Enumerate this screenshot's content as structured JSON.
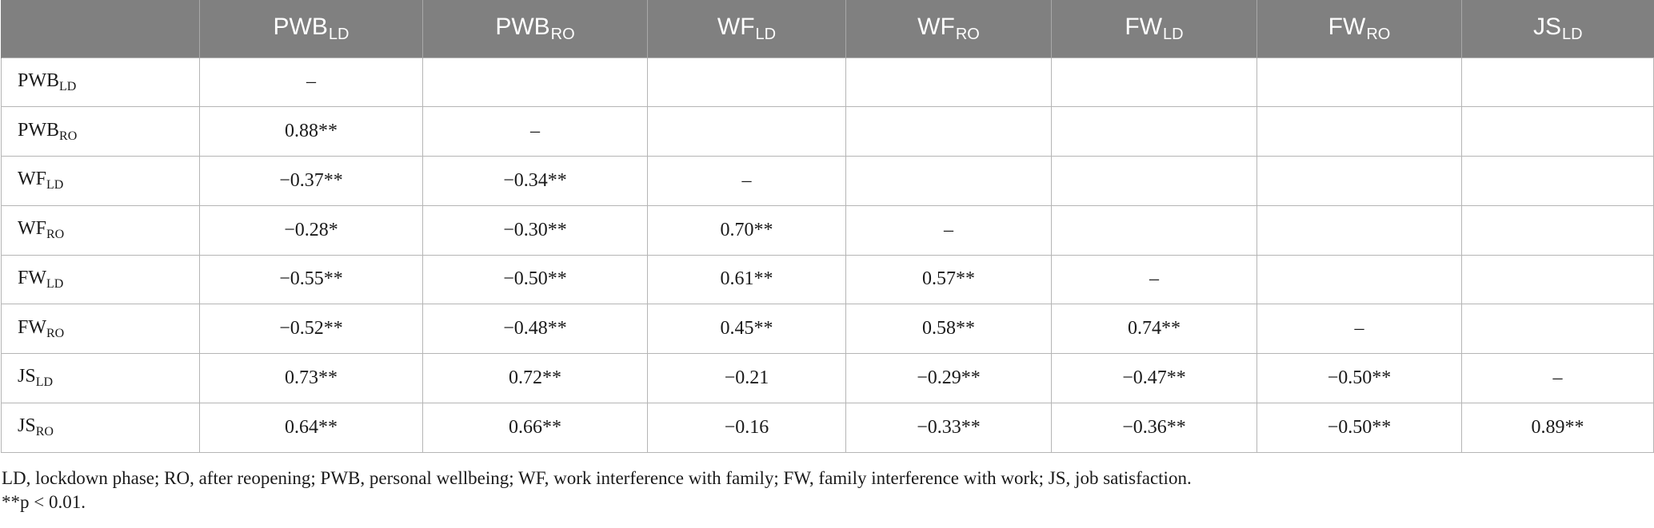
{
  "table": {
    "columns": [
      {
        "base": "",
        "sub": ""
      },
      {
        "base": "PWB",
        "sub": "LD"
      },
      {
        "base": "PWB",
        "sub": "RO"
      },
      {
        "base": "WF",
        "sub": "LD"
      },
      {
        "base": "WF",
        "sub": "RO"
      },
      {
        "base": "FW",
        "sub": "LD"
      },
      {
        "base": "FW",
        "sub": "RO"
      },
      {
        "base": "JS",
        "sub": "LD"
      }
    ],
    "rows": [
      {
        "base": "PWB",
        "sub": "LD",
        "cells": [
          "–",
          "",
          "",
          "",
          "",
          "",
          ""
        ]
      },
      {
        "base": "PWB",
        "sub": "RO",
        "cells": [
          "0.88**",
          "–",
          "",
          "",
          "",
          "",
          ""
        ]
      },
      {
        "base": "WF",
        "sub": "LD",
        "cells": [
          "−0.37**",
          "−0.34**",
          "–",
          "",
          "",
          "",
          ""
        ]
      },
      {
        "base": "WF",
        "sub": "RO",
        "cells": [
          "−0.28*",
          "−0.30**",
          "0.70**",
          "–",
          "",
          "",
          ""
        ]
      },
      {
        "base": "FW",
        "sub": "LD",
        "cells": [
          "−0.55**",
          "−0.50**",
          "0.61**",
          "0.57**",
          "–",
          "",
          ""
        ]
      },
      {
        "base": "FW",
        "sub": "RO",
        "cells": [
          "−0.52**",
          "−0.48**",
          "0.45**",
          "0.58**",
          "0.74**",
          "–",
          ""
        ]
      },
      {
        "base": "JS",
        "sub": "LD",
        "cells": [
          "0.73**",
          "0.72**",
          "−0.21",
          "−0.29**",
          "−0.47**",
          "−0.50**",
          "–"
        ]
      },
      {
        "base": "JS",
        "sub": "RO",
        "cells": [
          "0.64**",
          "0.66**",
          "−0.16",
          "−0.33**",
          "−0.36**",
          "−0.50**",
          "0.89**"
        ]
      }
    ]
  },
  "notes": {
    "abbreviations": "LD, lockdown phase; RO, after reopening; PWB, personal wellbeing; WF, work interference with family; FW, family interference with work; JS, job satisfaction.",
    "significance": "**p < 0.01."
  },
  "colors": {
    "header_background": "#808080",
    "header_text": "#ffffff",
    "grid_line": "#b5b5b5"
  }
}
